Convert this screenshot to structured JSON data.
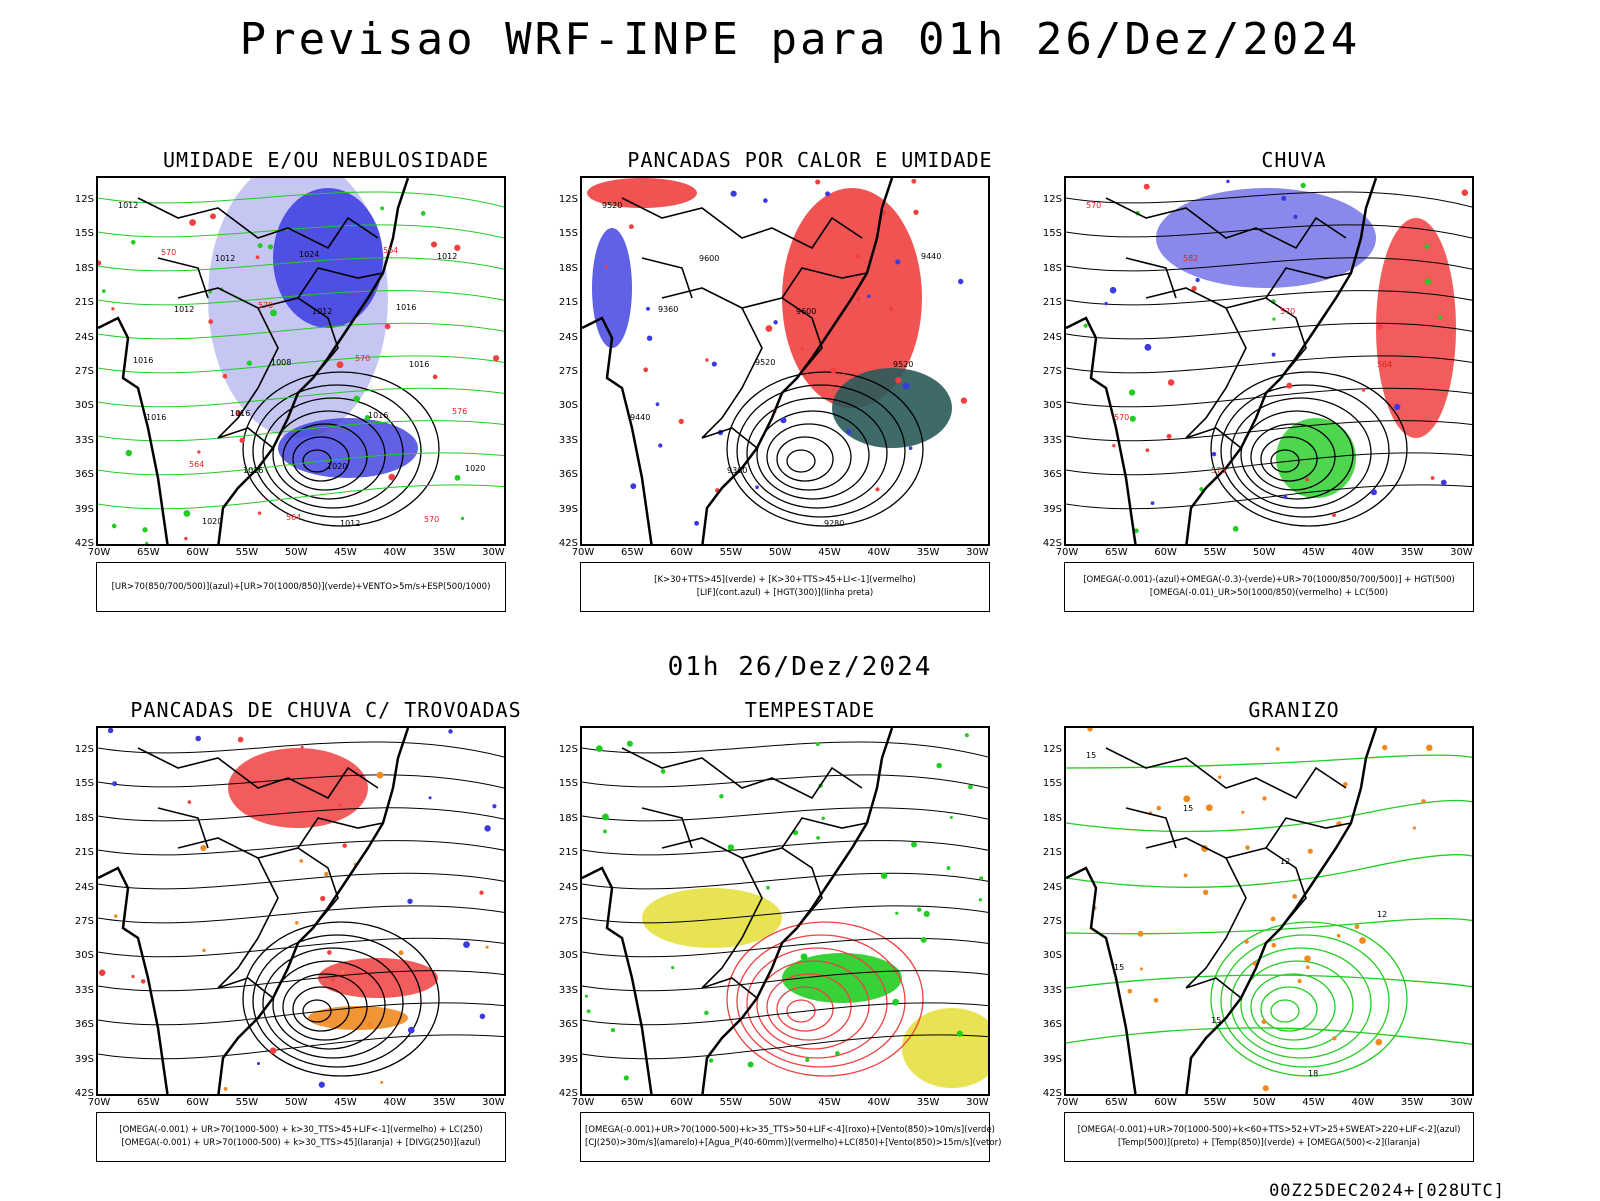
{
  "header": {
    "title": "Previsao WRF-INPE  para 01h 26/Dez/2024"
  },
  "mid_title": "01h 26/Dez/2024",
  "footer": "00Z25DEC2024+[028UTC]",
  "axes": {
    "lat_labels": [
      "12S",
      "15S",
      "18S",
      "21S",
      "24S",
      "27S",
      "30S",
      "33S",
      "36S",
      "39S",
      "42S"
    ],
    "lon_labels": [
      "70W",
      "65W",
      "60W",
      "55W",
      "50W",
      "45W",
      "40W",
      "35W",
      "30W"
    ]
  },
  "colors": {
    "blue": "#3a3ae0",
    "lightblue": "#b8b8f0",
    "green": "#22cc22",
    "red": "#f04040",
    "darkteal": "#2a5a5a",
    "orange": "#f08a20",
    "yellow": "#e6e040"
  },
  "panels": [
    {
      "id": "umidade",
      "title": "UMIDADE E/OU NEBULOSIDADE",
      "legend": [
        "[UR>70(850/700/500)](azul)+[UR>70(1000/850)](verde)+VENTO>5m/s+ESP(500/1000)"
      ],
      "labels": [
        "1012",
        "1012",
        "1012",
        "1016",
        "1016",
        "1016",
        "1012",
        "1012",
        "1012",
        "1008",
        "1016",
        "1020",
        "1020",
        "1024",
        "1016",
        "1016",
        "1016",
        "1020",
        "570",
        "570",
        "570",
        "570",
        "576",
        "564",
        "564",
        "564"
      ]
    },
    {
      "id": "pancadas_calor",
      "title": "PANCADAS POR CALOR E UMIDADE",
      "legend": [
        "[K>30+TTS>45](verde) + [K>30+TTS>45+LI<-1](vermelho)",
        "[LIF](cont.azul) + [HGT(300)](linha preta)"
      ],
      "labels": [
        "9520",
        "9600",
        "9600",
        "9520",
        "9440",
        "9360",
        "9280",
        "9440",
        "9360",
        "9520"
      ]
    },
    {
      "id": "chuva",
      "title": "CHUVA",
      "legend": [
        "[OMEGA(-0.001)-(azul)+OMEGA(-0.3)-(verde)+UR>70(1000/850/700/500)] + HGT(500)",
        "[OMEGA(-0.01)_UR>50(1000/850)(vermelho) + LC(500)"
      ],
      "labels": [
        "570",
        "582",
        "570",
        "564",
        "570",
        "573"
      ]
    },
    {
      "id": "pancadas_trovoadas",
      "title": "PANCADAS DE CHUVA C/ TROVOADAS",
      "legend": [
        "[OMEGA(-0.001) + UR>70(1000-500) + k>30_TTS>45+LIF<-1](vermelho) + LC(250)",
        "[OMEGA(-0.001) + UR>70(1000-500) + k>30_TTS>45](laranja) + [DIVG(250)](azul)"
      ],
      "labels": []
    },
    {
      "id": "tempestade",
      "title": "TEMPESTADE",
      "legend": [
        "[OMEGA(-0.001)+UR>70(1000-500)+k>35_TTS>50+LIF<-4](roxo)+[Vento(850)>10m/s](verde)",
        "[CJ(250)>30m/s](amarelo)+[Agua_P(40-60mm)](vermelho)+LC(850)+[Vento(850)>15m/s](vetor)"
      ],
      "labels": []
    },
    {
      "id": "granizo",
      "title": "GRANIZO",
      "legend": [
        "[OMEGA(-0.001)+UR>70(1000-500)+k<60+TTS>52+VT>25+SWEAT>220+LIF<-2](azul)",
        "[Temp(500)](preto) + [Temp(850)](verde) + [OMEGA(500)<-2](laranja)"
      ],
      "labels": [
        "15",
        "15",
        "12",
        "12",
        "15",
        "15",
        "18"
      ]
    }
  ]
}
